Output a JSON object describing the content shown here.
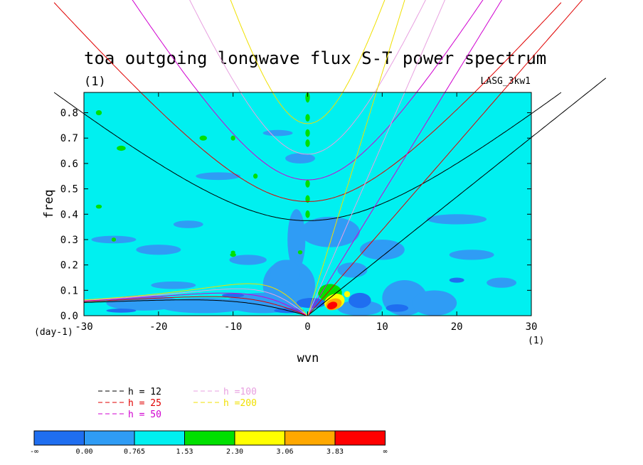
{
  "chart_data": {
    "type": "heatmap",
    "title": "toa outgoing longwave flux S-T power spectrum",
    "subtitle": "(1)",
    "dataset_label": "LASG_3kw1",
    "xlabel": "wvn",
    "ylabel": "freq",
    "x_units": "(1)",
    "y_units": "(day-1)",
    "xlim": [
      -30,
      30
    ],
    "ylim": [
      0,
      0.88
    ],
    "x_ticks": [
      "-30",
      "-20",
      "-10",
      "0",
      "10",
      "20",
      "30"
    ],
    "y_ticks": [
      "0.0",
      "0.1",
      "0.2",
      "0.3",
      "0.4",
      "0.5",
      "0.6",
      "0.7",
      "0.8"
    ],
    "legend": [
      {
        "label": "h = 12",
        "color": "#000000",
        "h": 12
      },
      {
        "label": "h = 25",
        "color": "#e00000",
        "h": 25
      },
      {
        "label": "h = 50",
        "color": "#d000d0",
        "h": 50
      },
      {
        "label": "h =100",
        "color": "#e8a0e0",
        "h": 100
      },
      {
        "label": "h =200",
        "color": "#f0e000",
        "h": 200
      }
    ],
    "colorbar": {
      "labels": [
        "-∞",
        "0.00",
        "0.765",
        "1.53",
        "2.30",
        "3.06",
        "3.83",
        "∞"
      ],
      "colors": [
        "#1f6ef0",
        "#2f9cf5",
        "#00f0f0",
        "#00e000",
        "#ffff00",
        "#ffa800",
        "#ff0000"
      ]
    },
    "background_color": "#00f0f0",
    "dispersion_curves": [
      "equatorial Rossby (n=1)",
      "inertia-gravity (n=1)",
      "Kelvin"
    ],
    "grid": false
  }
}
